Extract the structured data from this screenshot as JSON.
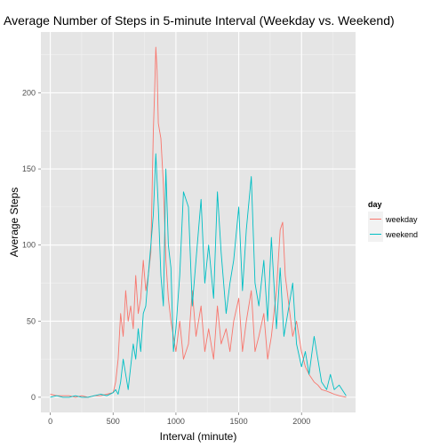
{
  "chart_data": {
    "type": "line",
    "title": "Average Number of Steps in 5-minute Interval (Weekday vs. Weekend)",
    "xlabel": "Interval (minute)",
    "ylabel": "Average Steps",
    "xlim": [
      -75,
      2430
    ],
    "ylim": [
      -10,
      240
    ],
    "xticks": [
      0,
      500,
      1000,
      1500,
      2000
    ],
    "yticks": [
      0,
      50,
      100,
      150,
      200
    ],
    "grid": true,
    "legend": {
      "title": "day",
      "position": "right",
      "entries": [
        "weekday",
        "weekend"
      ]
    },
    "series": [
      {
        "name": "weekday",
        "color": "#F8766D",
        "x": [
          0,
          50,
          100,
          150,
          200,
          250,
          300,
          350,
          400,
          450,
          500,
          520,
          540,
          560,
          580,
          600,
          620,
          640,
          660,
          680,
          700,
          720,
          740,
          760,
          780,
          800,
          820,
          830,
          840,
          850,
          860,
          880,
          900,
          920,
          940,
          960,
          980,
          1000,
          1030,
          1060,
          1100,
          1130,
          1160,
          1200,
          1230,
          1260,
          1300,
          1330,
          1360,
          1400,
          1430,
          1460,
          1500,
          1530,
          1560,
          1600,
          1630,
          1660,
          1700,
          1730,
          1760,
          1800,
          1830,
          1850,
          1870,
          1900,
          1930,
          1960,
          2000,
          2030,
          2060,
          2100,
          2130,
          2160,
          2200,
          2230,
          2260,
          2300,
          2355
        ],
        "y": [
          2,
          1,
          1,
          1,
          0,
          1,
          0,
          1,
          1,
          2,
          3,
          10,
          25,
          55,
          40,
          70,
          50,
          60,
          45,
          80,
          55,
          65,
          90,
          70,
          80,
          95,
          175,
          200,
          230,
          215,
          180,
          170,
          140,
          90,
          65,
          50,
          40,
          30,
          50,
          25,
          35,
          70,
          40,
          60,
          30,
          45,
          25,
          60,
          35,
          45,
          30,
          50,
          65,
          30,
          50,
          70,
          30,
          40,
          55,
          25,
          40,
          70,
          110,
          115,
          80,
          60,
          40,
          50,
          30,
          20,
          15,
          10,
          8,
          5,
          4,
          3,
          2,
          1,
          0
        ]
      },
      {
        "name": "weekend",
        "color": "#00BFC4",
        "x": [
          0,
          50,
          100,
          150,
          200,
          250,
          300,
          350,
          400,
          450,
          500,
          520,
          540,
          560,
          580,
          600,
          620,
          640,
          660,
          680,
          700,
          720,
          740,
          760,
          780,
          800,
          820,
          840,
          860,
          880,
          900,
          920,
          940,
          960,
          980,
          1000,
          1030,
          1060,
          1100,
          1130,
          1160,
          1200,
          1230,
          1260,
          1300,
          1330,
          1360,
          1400,
          1430,
          1460,
          1500,
          1530,
          1560,
          1600,
          1630,
          1660,
          1700,
          1730,
          1760,
          1800,
          1830,
          1860,
          1900,
          1930,
          1960,
          2000,
          2030,
          2060,
          2100,
          2130,
          2160,
          2200,
          2230,
          2260,
          2300,
          2355
        ],
        "y": [
          0,
          1,
          0,
          0,
          1,
          0,
          0,
          1,
          2,
          1,
          3,
          5,
          2,
          10,
          25,
          15,
          5,
          20,
          35,
          25,
          45,
          30,
          55,
          60,
          80,
          100,
          120,
          160,
          125,
          80,
          60,
          150,
          100,
          85,
          30,
          45,
          80,
          135,
          125,
          60,
          90,
          130,
          75,
          100,
          65,
          135,
          95,
          55,
          75,
          90,
          125,
          70,
          110,
          145,
          75,
          60,
          90,
          50,
          105,
          45,
          85,
          40,
          60,
          75,
          35,
          20,
          30,
          15,
          40,
          25,
          10,
          5,
          15,
          5,
          8,
          1
        ]
      }
    ]
  }
}
